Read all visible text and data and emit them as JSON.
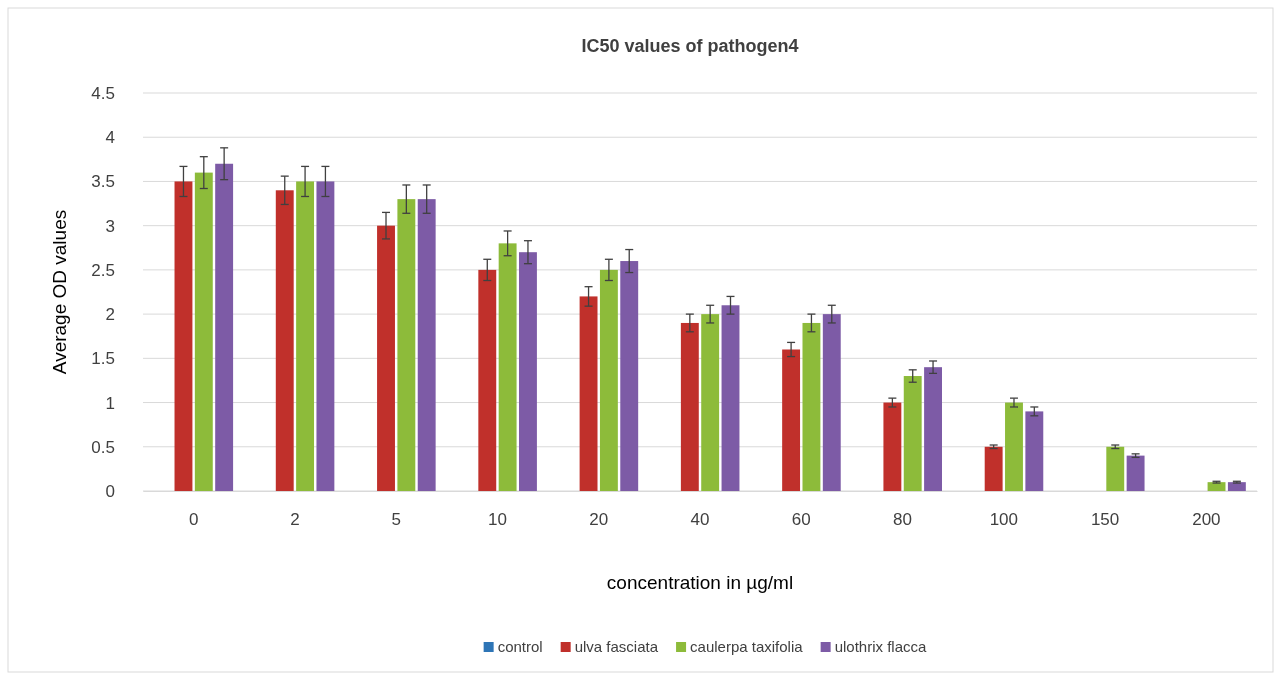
{
  "chart_data": {
    "type": "bar",
    "title": "IC50 values of pathogen4",
    "xlabel": "concentration in µg/ml",
    "ylabel": "Average OD values",
    "categories": [
      "0",
      "2",
      "5",
      "10",
      "20",
      "40",
      "60",
      "80",
      "100",
      "150",
      "200"
    ],
    "series": [
      {
        "name": "control",
        "color": "#2e75b6",
        "values": [
          0,
          0,
          0,
          0,
          0,
          0,
          0,
          0,
          0,
          0,
          0
        ]
      },
      {
        "name": "ulva fasciata",
        "color": "#c0302b",
        "values": [
          3.5,
          3.4,
          3.0,
          2.5,
          2.2,
          1.9,
          1.6,
          1.0,
          0.5,
          0,
          0
        ],
        "errors": [
          0.17,
          0.16,
          0.15,
          0.12,
          0.11,
          0.1,
          0.08,
          0.05,
          0.02,
          null,
          null
        ]
      },
      {
        "name": "caulerpa taxifolia",
        "color": "#8dbb3a",
        "values": [
          3.6,
          3.5,
          3.3,
          2.8,
          2.5,
          2.0,
          1.9,
          1.3,
          1.0,
          0.5,
          0.1
        ],
        "errors": [
          0.18,
          0.17,
          0.16,
          0.14,
          0.12,
          0.1,
          0.1,
          0.07,
          0.05,
          0.02,
          0.01
        ]
      },
      {
        "name": "ulothrix flacca",
        "color": "#7d5ba6",
        "values": [
          3.7,
          3.5,
          3.3,
          2.7,
          2.6,
          2.1,
          2.0,
          1.4,
          0.9,
          0.4,
          0.1
        ],
        "errors": [
          0.18,
          0.17,
          0.16,
          0.13,
          0.13,
          0.1,
          0.1,
          0.07,
          0.05,
          0.02,
          0.01
        ]
      }
    ],
    "ylim": [
      0,
      4.5
    ],
    "yticks": [
      0,
      0.5,
      1,
      1.5,
      2,
      2.5,
      3,
      3.5,
      4,
      4.5
    ],
    "grid": "y",
    "legend": "bottom"
  }
}
